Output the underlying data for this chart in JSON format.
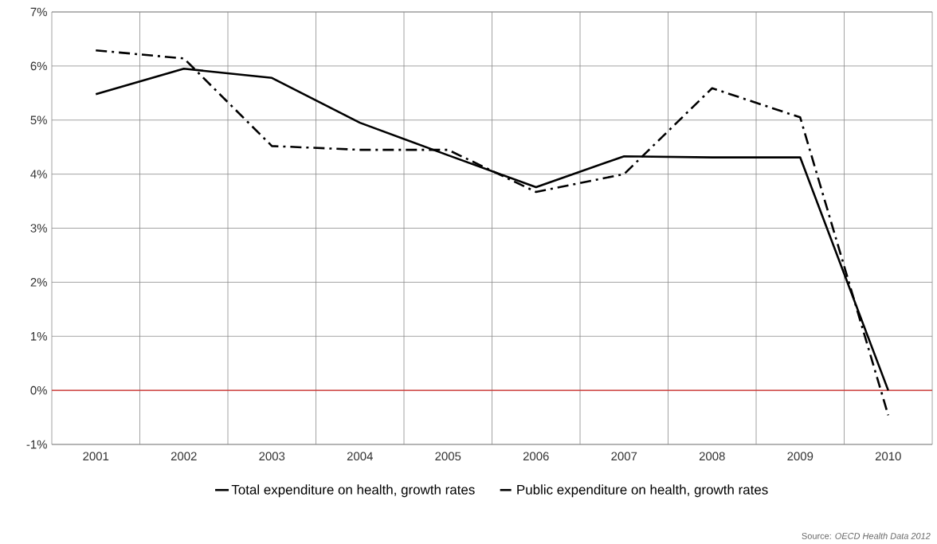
{
  "chart_data": {
    "type": "line",
    "categories": [
      "2001",
      "2002",
      "2003",
      "2004",
      "2005",
      "2006",
      "2007",
      "2008",
      "2009",
      "2010"
    ],
    "series": [
      {
        "name": "Total expenditure on health, growth rates",
        "color": "#000000",
        "line_style": "solid",
        "values": [
          5.48,
          5.95,
          5.78,
          4.95,
          4.35,
          3.76,
          4.33,
          4.31,
          4.31,
          0.0
        ]
      },
      {
        "name": "Public expenditure on health, growth rates",
        "color": "#000000",
        "line_style": "dashdot",
        "values": [
          6.29,
          6.14,
          4.52,
          4.45,
          4.45,
          3.67,
          4.0,
          5.59,
          5.05,
          -0.46
        ]
      }
    ],
    "ylim": [
      -1,
      7
    ],
    "yticks": [
      {
        "value": -1,
        "label": "-1%"
      },
      {
        "value": 0,
        "label": "0%"
      },
      {
        "value": 1,
        "label": "1%"
      },
      {
        "value": 2,
        "label": "2%"
      },
      {
        "value": 3,
        "label": "3%"
      },
      {
        "value": 4,
        "label": "4%"
      },
      {
        "value": 5,
        "label": "5%"
      },
      {
        "value": 6,
        "label": "6%"
      },
      {
        "value": 7,
        "label": "7%"
      }
    ],
    "ref_lines": [
      {
        "axis": "y",
        "value": 0,
        "color": "#d9302c"
      }
    ],
    "grid": true,
    "legend": "bottom",
    "marker": "none",
    "annotations": [
      "Source: *OECD Health Data 2012*"
    ]
  }
}
